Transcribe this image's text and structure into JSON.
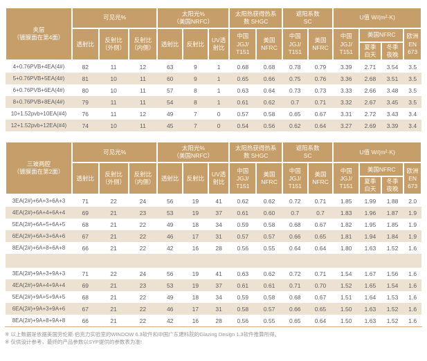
{
  "colors": {
    "header_bg": "#c69e6a",
    "stripe_bg": "#ede1d1",
    "rule_color": "#d9ad79"
  },
  "columns": {
    "visible_group": "可见光%",
    "solar_group": "太阳光%\n（美国NRFC）",
    "shgc_group": "太阳热获得热系\n数 SHGC",
    "sc_group": "遮阳系数\nSC",
    "u_group": "U值 W/(m²·K)",
    "transmittance": "透射比",
    "reflectance_out": "反射比\n（外侧）",
    "reflectance_in": "反射比\n（内侧）",
    "solar_transmittance": "透射比",
    "solar_reflectance": "反射比",
    "uv_transmittance": "UV透\n射比",
    "shgc_china": "中国\nJGJ/\nT151",
    "shgc_usa": "美国\nNFRC",
    "sc_china": "中国\nJGJ/\nT151",
    "sc_usa": "美国\nNFRC",
    "u_china": "中国\nJGJ/\nT151",
    "u_usa_group": "美国NFRC",
    "summer_day": "夏季\n白天",
    "winter_night": "冬季\n夜晚",
    "europe_en": "欧洲\nEN\n673"
  },
  "table1": {
    "title": "夹层\n（镀膜面在第4面）",
    "rows": [
      {
        "label": "4+0.76PVB+4EA(4#)",
        "values": [
          "82",
          "11",
          "12",
          "63",
          "9",
          "1",
          "0.68",
          "0.68",
          "0.78",
          "0.79",
          "3.39",
          "2.71",
          "3.54",
          "3.5"
        ]
      },
      {
        "label": "5+0.76PVB+5EA(4#)",
        "values": [
          "81",
          "10",
          "11",
          "60",
          "9",
          "1",
          "0.65",
          "0.66",
          "0.75",
          "0.76",
          "3.36",
          "2.68",
          "3.51",
          "3.5"
        ]
      },
      {
        "label": "6+0.76PVB+6EA(4#)",
        "values": [
          "80",
          "10",
          "11",
          "57",
          "8",
          "1",
          "0.63",
          "0.64",
          "0.73",
          "0.73",
          "3.33",
          "2.66",
          "3.48",
          "3.5"
        ]
      },
      {
        "label": "8+0.76PVB+8EA(4#)",
        "values": [
          "79",
          "11",
          "11",
          "54",
          "8",
          "1",
          "0.61",
          "0.62",
          "0.7",
          "0.71",
          "3.32",
          "2.67",
          "3.45",
          "3.5"
        ]
      },
      {
        "label": "10+1.52pvb+10EA(#4)",
        "values": [
          "76",
          "11",
          "12",
          "49",
          "7",
          "0",
          "0.57",
          "0.58",
          "0.65",
          "0.67",
          "3.31",
          "2.72",
          "3.43",
          "3.4"
        ]
      },
      {
        "label": "12+1.52pvb+12EA(#4)",
        "values": [
          "74",
          "10",
          "11",
          "45",
          "7",
          "0",
          "0.54",
          "0.56",
          "0.62",
          "0.64",
          "3.27",
          "2.69",
          "3.39",
          "3.4"
        ]
      }
    ]
  },
  "table2": {
    "title": "三玻两腔\n（镀膜面在第2面）",
    "group1_rows": [
      {
        "label": "3EA(2#)+6A+3+6A+3",
        "values": [
          "71",
          "22",
          "24",
          "56",
          "19",
          "41",
          "0.62",
          "0.62",
          "0.72",
          "0.71",
          "1.85",
          "1.99",
          "1.88",
          "2.0"
        ]
      },
      {
        "label": "4EA(2#)+6A+4+6A+4",
        "values": [
          "69",
          "21",
          "23",
          "53",
          "19",
          "37",
          "0.61",
          "0.60",
          "0.7",
          "0.7",
          "1.83",
          "1.96",
          "1.87",
          "1.9"
        ]
      },
      {
        "label": "5EA(2#)+6A+5+6A+5",
        "values": [
          "68",
          "21",
          "22",
          "49",
          "18",
          "34",
          "0.59",
          "0.58",
          "0.68",
          "0.67",
          "1.82",
          "1.95",
          "1.85",
          "1.9"
        ]
      },
      {
        "label": "6EA(2#)+6A+3+6A+6",
        "values": [
          "67",
          "21",
          "22",
          "46",
          "17",
          "31",
          "0.57",
          "0.57",
          "0.66",
          "0.65",
          "1.81",
          "1.94",
          "1.84",
          "1.9"
        ]
      },
      {
        "label": "8EA(2#)+6A+8+6A+8",
        "values": [
          "66",
          "21",
          "22",
          "42",
          "16",
          "28",
          "0.56",
          "0.55",
          "0.64",
          "0.64",
          "1.80",
          "1.63",
          "1.52",
          "1.6"
        ]
      }
    ],
    "group2_rows": [
      {
        "label": "3EA(2#)+9A+3+9A+3",
        "values": [
          "71",
          "22",
          "24",
          "56",
          "19",
          "41",
          "0.63",
          "0.62",
          "0.72",
          "0.71",
          "1.54",
          "1.67",
          "1.56",
          "1.6"
        ]
      },
      {
        "label": "4EA(2#)+9A+4+9A+4",
        "values": [
          "69",
          "21",
          "23",
          "53",
          "19",
          "37",
          "0.61",
          "0.61",
          "0.71",
          "0.70",
          "1.52",
          "1.65",
          "1.54",
          "1.6"
        ]
      },
      {
        "label": "5EA(2#)+9A+5+9A+5",
        "values": [
          "68",
          "21",
          "22",
          "49",
          "18",
          "34",
          "0.59",
          "0.58",
          "0.68",
          "0.67",
          "1.51",
          "1.64",
          "1.53",
          "1.6"
        ]
      },
      {
        "label": "6EA(2#)+9A+3+9A+6",
        "values": [
          "67",
          "21",
          "22",
          "46",
          "17",
          "31",
          "0.58",
          "0.57",
          "0.66",
          "0.65",
          "1.50",
          "1.63",
          "1.52",
          "1.6"
        ]
      },
      {
        "label": "8EA(2#)+9A+8+9A+8",
        "values": [
          "66",
          "21",
          "22",
          "42",
          "16",
          "28",
          "0.56",
          "0.55",
          "0.65",
          "0.64",
          "1.50",
          "1.63",
          "1.52",
          "1.6"
        ]
      }
    ]
  },
  "footnotes": [
    "※ 以上数据是依据美国劳伦斯·伯克力实验室的WINDOW 6.3软件和中国广东建科院的Glazing Design 1.3软件推算所得。",
    "※ 仅供设计参考，最终的产品参数以SYP提供的参数表为准!"
  ]
}
